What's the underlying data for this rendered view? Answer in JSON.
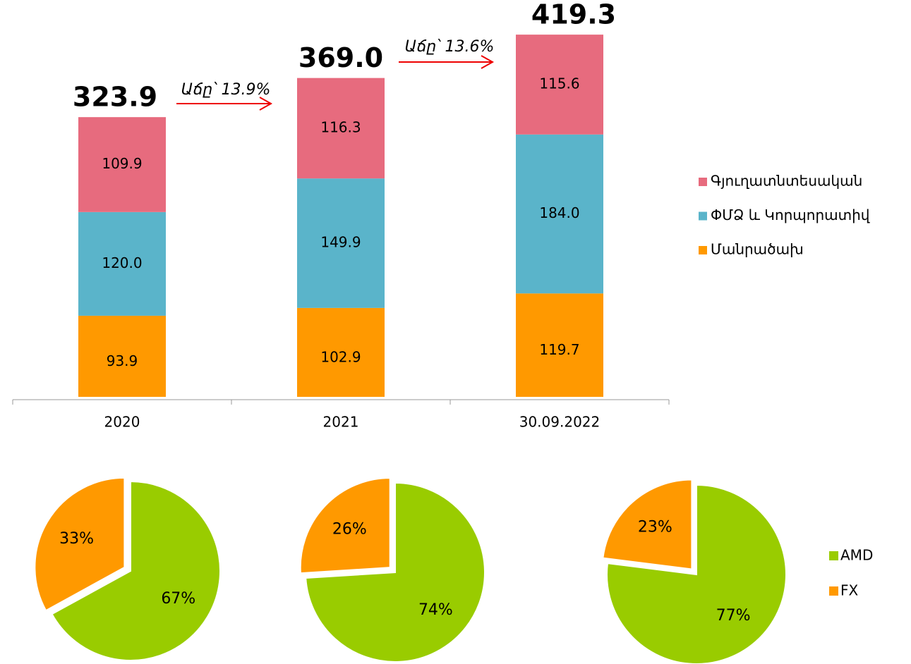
{
  "chart_data": [
    {
      "type": "bar",
      "stacked": true,
      "categories": [
        "2020",
        "2021",
        "30.09.2022"
      ],
      "series": [
        {
          "name": "Մանրածախ",
          "color": "#ff9900",
          "values": [
            93.9,
            102.9,
            119.7
          ]
        },
        {
          "name": "ՓՄՁ և Կորպորատիվ",
          "color": "#5ab4ca",
          "values": [
            120.0,
            149.9,
            184.0
          ],
          "value_labels": [
            "120.0",
            "149.9",
            "184.0"
          ]
        },
        {
          "name": "Գյուղատնտեսական",
          "color": "#e76b7e",
          "values": [
            109.9,
            116.3,
            115.6
          ]
        }
      ],
      "totals": {
        "values": [
          323.9,
          369.0,
          419.3
        ],
        "value_labels": [
          "323.9",
          "369.0",
          "419.3"
        ]
      },
      "annotations": [
        "Աճը՝ 13.9%",
        "Աճը՝ 13.6%"
      ],
      "ylim": [
        0,
        450
      ],
      "legend": "right"
    },
    {
      "type": "pie",
      "categories": [
        "AMD",
        "FX"
      ],
      "colors": [
        "#99cc00",
        "#ff9900"
      ],
      "legend": "right",
      "pies": [
        {
          "values": [
            67,
            33
          ],
          "value_labels": [
            "67%",
            "33%"
          ]
        },
        {
          "values": [
            74,
            26
          ],
          "value_labels": [
            "74%",
            "26%"
          ]
        },
        {
          "values": [
            77,
            23
          ],
          "value_labels": [
            "77%",
            "23%"
          ]
        }
      ]
    }
  ]
}
